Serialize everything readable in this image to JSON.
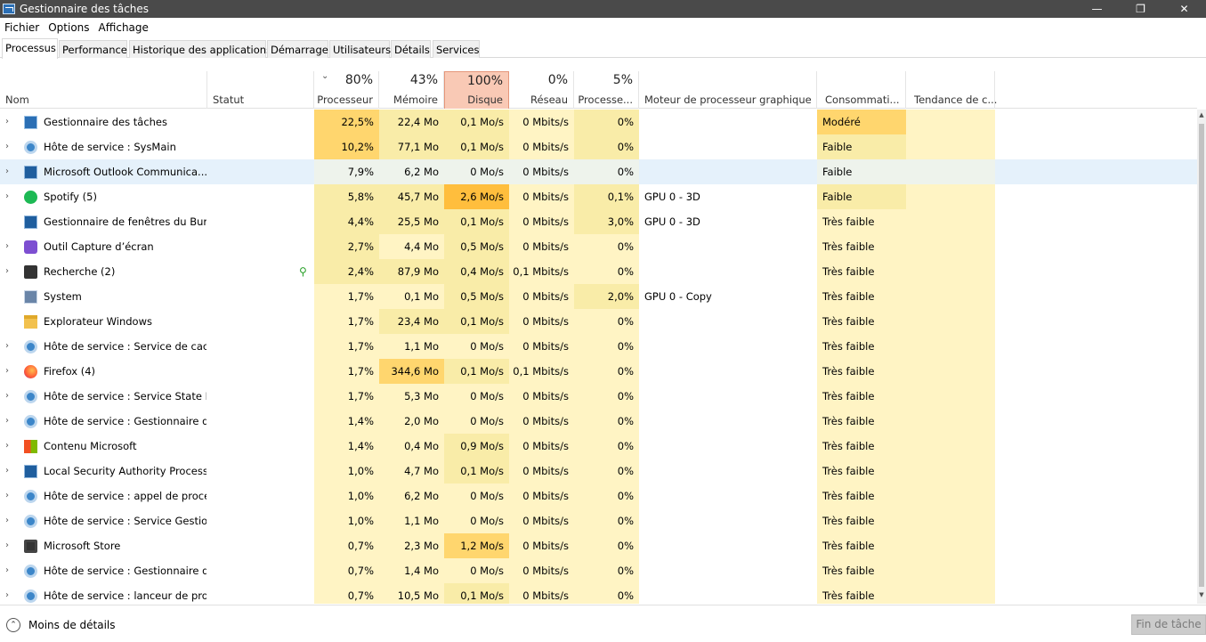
{
  "window": {
    "title": "Gestionnaire des tâches",
    "minimize": "—",
    "maximize": "❐",
    "close": "✕"
  },
  "menu": [
    "Fichier",
    "Options",
    "Affichage"
  ],
  "tabs": [
    "Processus",
    "Performance",
    "Historique des applications",
    "Démarrage",
    "Utilisateurs",
    "Détails",
    "Services"
  ],
  "active_tab": "Processus",
  "columns": {
    "nom": "Nom",
    "statut": "Statut",
    "processeur": {
      "pct": "80%",
      "label": "Processeur"
    },
    "memoire": {
      "pct": "43%",
      "label": "Mémoire"
    },
    "disque": {
      "pct": "100%",
      "label": "Disque"
    },
    "reseau": {
      "pct": "0%",
      "label": "Réseau"
    },
    "gpu": {
      "pct": "5%",
      "label": "Processe..."
    },
    "moteur": "Moteur de processeur graphique",
    "conso": "Consommati...",
    "tendance": "Tendance de c..."
  },
  "colors": {
    "heat_light": "#fff4c4",
    "heat_mid": "#f9eca8",
    "heat_strong": "#ffd66e",
    "heat_max": "#ffbe3d",
    "disk_header": "#f9c9b5",
    "selection": "#e5f1fb",
    "titlebar": "#4a4a4a"
  },
  "rows": [
    {
      "expand": true,
      "icon": "task-manager-icon",
      "name": "Gestionnaire des tâches",
      "cpu": "22,5%",
      "mem": "22,4 Mo",
      "disk": "0,1 Mo/s",
      "net": "0 Mbits/s",
      "gpu": "0%",
      "engine": "",
      "power": "Modéré",
      "h": {
        "cpu": 2,
        "mem": 1,
        "disk": 1,
        "gpu": 1,
        "power": 2
      }
    },
    {
      "expand": true,
      "icon": "gear-icon",
      "name": "Hôte de service : SysMain",
      "cpu": "10,2%",
      "mem": "77,1 Mo",
      "disk": "0,1 Mo/s",
      "net": "0 Mbits/s",
      "gpu": "0%",
      "engine": "",
      "power": "Faible",
      "h": {
        "cpu": 2,
        "mem": 1,
        "disk": 1,
        "gpu": 1,
        "power": 1
      }
    },
    {
      "expand": true,
      "icon": "window-icon",
      "name": "Microsoft Outlook Communica...",
      "cpu": "7,9%",
      "mem": "6,2 Mo",
      "disk": "0 Mo/s",
      "net": "0 Mbits/s",
      "gpu": "0%",
      "engine": "",
      "power": "Faible",
      "selected": true,
      "h": {
        "cpu": 0,
        "mem": 0,
        "disk": 0,
        "gpu": 0,
        "power": 0
      }
    },
    {
      "expand": true,
      "icon": "spotify-icon",
      "name": "Spotify (5)",
      "cpu": "5,8%",
      "mem": "45,7 Mo",
      "disk": "2,6 Mo/s",
      "net": "0 Mbits/s",
      "gpu": "0,1%",
      "engine": "GPU 0 - 3D",
      "power": "Faible",
      "h": {
        "cpu": 1,
        "mem": 1,
        "disk": 3,
        "gpu": 1,
        "power": 1
      }
    },
    {
      "expand": false,
      "icon": "window-icon",
      "name": "Gestionnaire de fenêtres du Bur...",
      "cpu": "4,4%",
      "mem": "25,5 Mo",
      "disk": "0,1 Mo/s",
      "net": "0 Mbits/s",
      "gpu": "3,0%",
      "engine": "GPU 0 - 3D",
      "power": "Très faible",
      "h": {
        "cpu": 1,
        "mem": 1,
        "disk": 1,
        "gpu": 1,
        "power": 0
      }
    },
    {
      "expand": true,
      "icon": "snipping-tool-icon",
      "name": "Outil Capture d’écran",
      "cpu": "2,7%",
      "mem": "4,4 Mo",
      "disk": "0,5 Mo/s",
      "net": "0 Mbits/s",
      "gpu": "0%",
      "engine": "",
      "power": "Très faible",
      "h": {
        "cpu": 1,
        "mem": 0,
        "disk": 1,
        "gpu": 0,
        "power": 0
      }
    },
    {
      "expand": true,
      "icon": "search-icon",
      "name": "Recherche (2)",
      "cpu": "2,4%",
      "mem": "87,9 Mo",
      "disk": "0,4 Mo/s",
      "net": "0,1 Mbits/s",
      "gpu": "0%",
      "engine": "",
      "power": "Très faible",
      "leaf": true,
      "h": {
        "cpu": 1,
        "mem": 1,
        "disk": 1,
        "gpu": 0,
        "power": 0
      }
    },
    {
      "expand": false,
      "icon": "system-icon",
      "name": "System",
      "cpu": "1,7%",
      "mem": "0,1 Mo",
      "disk": "0,5 Mo/s",
      "net": "0 Mbits/s",
      "gpu": "2,0%",
      "engine": "GPU 0 - Copy",
      "power": "Très faible",
      "h": {
        "cpu": 0,
        "mem": 0,
        "disk": 1,
        "gpu": 1,
        "power": 0
      }
    },
    {
      "expand": false,
      "icon": "folder-icon",
      "name": "Explorateur Windows",
      "cpu": "1,7%",
      "mem": "23,4 Mo",
      "disk": "0,1 Mo/s",
      "net": "0 Mbits/s",
      "gpu": "0%",
      "engine": "",
      "power": "Très faible",
      "h": {
        "cpu": 0,
        "mem": 1,
        "disk": 1,
        "gpu": 0,
        "power": 0
      }
    },
    {
      "expand": true,
      "icon": "gear-icon",
      "name": "Hôte de service : Service de cac...",
      "cpu": "1,7%",
      "mem": "1,1 Mo",
      "disk": "0 Mo/s",
      "net": "0 Mbits/s",
      "gpu": "0%",
      "engine": "",
      "power": "Très faible",
      "h": {
        "cpu": 0,
        "mem": 0,
        "disk": 0,
        "gpu": 0,
        "power": 0
      }
    },
    {
      "expand": true,
      "icon": "firefox-icon",
      "name": "Firefox (4)",
      "cpu": "1,7%",
      "mem": "344,6 Mo",
      "disk": "0,1 Mo/s",
      "net": "0,1 Mbits/s",
      "gpu": "0%",
      "engine": "",
      "power": "Très faible",
      "h": {
        "cpu": 0,
        "mem": 2,
        "disk": 1,
        "gpu": 0,
        "power": 0
      }
    },
    {
      "expand": true,
      "icon": "gear-icon",
      "name": "Hôte de service : Service State R...",
      "cpu": "1,7%",
      "mem": "5,3 Mo",
      "disk": "0 Mo/s",
      "net": "0 Mbits/s",
      "gpu": "0%",
      "engine": "",
      "power": "Très faible",
      "h": {
        "cpu": 0,
        "mem": 0,
        "disk": 0,
        "gpu": 0,
        "power": 0
      }
    },
    {
      "expand": true,
      "icon": "gear-icon",
      "name": "Hôte de service : Gestionnaire d...",
      "cpu": "1,4%",
      "mem": "2,0 Mo",
      "disk": "0 Mo/s",
      "net": "0 Mbits/s",
      "gpu": "0%",
      "engine": "",
      "power": "Très faible",
      "h": {
        "cpu": 0,
        "mem": 0,
        "disk": 0,
        "gpu": 0,
        "power": 0
      }
    },
    {
      "expand": true,
      "icon": "microsoft-icon",
      "name": "Contenu Microsoft",
      "cpu": "1,4%",
      "mem": "0,4 Mo",
      "disk": "0,9 Mo/s",
      "net": "0 Mbits/s",
      "gpu": "0%",
      "engine": "",
      "power": "Très faible",
      "h": {
        "cpu": 0,
        "mem": 0,
        "disk": 1,
        "gpu": 0,
        "power": 0
      }
    },
    {
      "expand": true,
      "icon": "window-icon",
      "name": "Local Security Authority Process...",
      "cpu": "1,0%",
      "mem": "4,7 Mo",
      "disk": "0,1 Mo/s",
      "net": "0 Mbits/s",
      "gpu": "0%",
      "engine": "",
      "power": "Très faible",
      "h": {
        "cpu": 0,
        "mem": 0,
        "disk": 1,
        "gpu": 0,
        "power": 0
      }
    },
    {
      "expand": true,
      "icon": "gear-icon",
      "name": "Hôte de service : appel de procé...",
      "cpu": "1,0%",
      "mem": "6,2 Mo",
      "disk": "0 Mo/s",
      "net": "0 Mbits/s",
      "gpu": "0%",
      "engine": "",
      "power": "Très faible",
      "h": {
        "cpu": 0,
        "mem": 0,
        "disk": 0,
        "gpu": 0,
        "power": 0
      }
    },
    {
      "expand": true,
      "icon": "gear-icon",
      "name": "Hôte de service : Service Gestio...",
      "cpu": "1,0%",
      "mem": "1,1 Mo",
      "disk": "0 Mo/s",
      "net": "0 Mbits/s",
      "gpu": "0%",
      "engine": "",
      "power": "Très faible",
      "h": {
        "cpu": 0,
        "mem": 0,
        "disk": 0,
        "gpu": 0,
        "power": 0
      }
    },
    {
      "expand": true,
      "icon": "store-icon",
      "name": "Microsoft Store",
      "cpu": "0,7%",
      "mem": "2,3 Mo",
      "disk": "1,2 Mo/s",
      "net": "0 Mbits/s",
      "gpu": "0%",
      "engine": "",
      "power": "Très faible",
      "h": {
        "cpu": 0,
        "mem": 0,
        "disk": 2,
        "gpu": 0,
        "power": 0
      }
    },
    {
      "expand": true,
      "icon": "gear-icon",
      "name": "Hôte de service : Gestionnaire d...",
      "cpu": "0,7%",
      "mem": "1,4 Mo",
      "disk": "0 Mo/s",
      "net": "0 Mbits/s",
      "gpu": "0%",
      "engine": "",
      "power": "Très faible",
      "h": {
        "cpu": 0,
        "mem": 0,
        "disk": 0,
        "gpu": 0,
        "power": 0
      }
    },
    {
      "expand": true,
      "icon": "gear-icon",
      "name": "Hôte de service : lanceur de pro...",
      "cpu": "0,7%",
      "mem": "10,5 Mo",
      "disk": "0,1 Mo/s",
      "net": "0 Mbits/s",
      "gpu": "0%",
      "engine": "",
      "power": "Très faible",
      "h": {
        "cpu": 0,
        "mem": 0,
        "disk": 1,
        "gpu": 0,
        "power": 0
      }
    }
  ],
  "footer": {
    "less_details": "Moins de détails",
    "end_task": "Fin de tâche"
  }
}
